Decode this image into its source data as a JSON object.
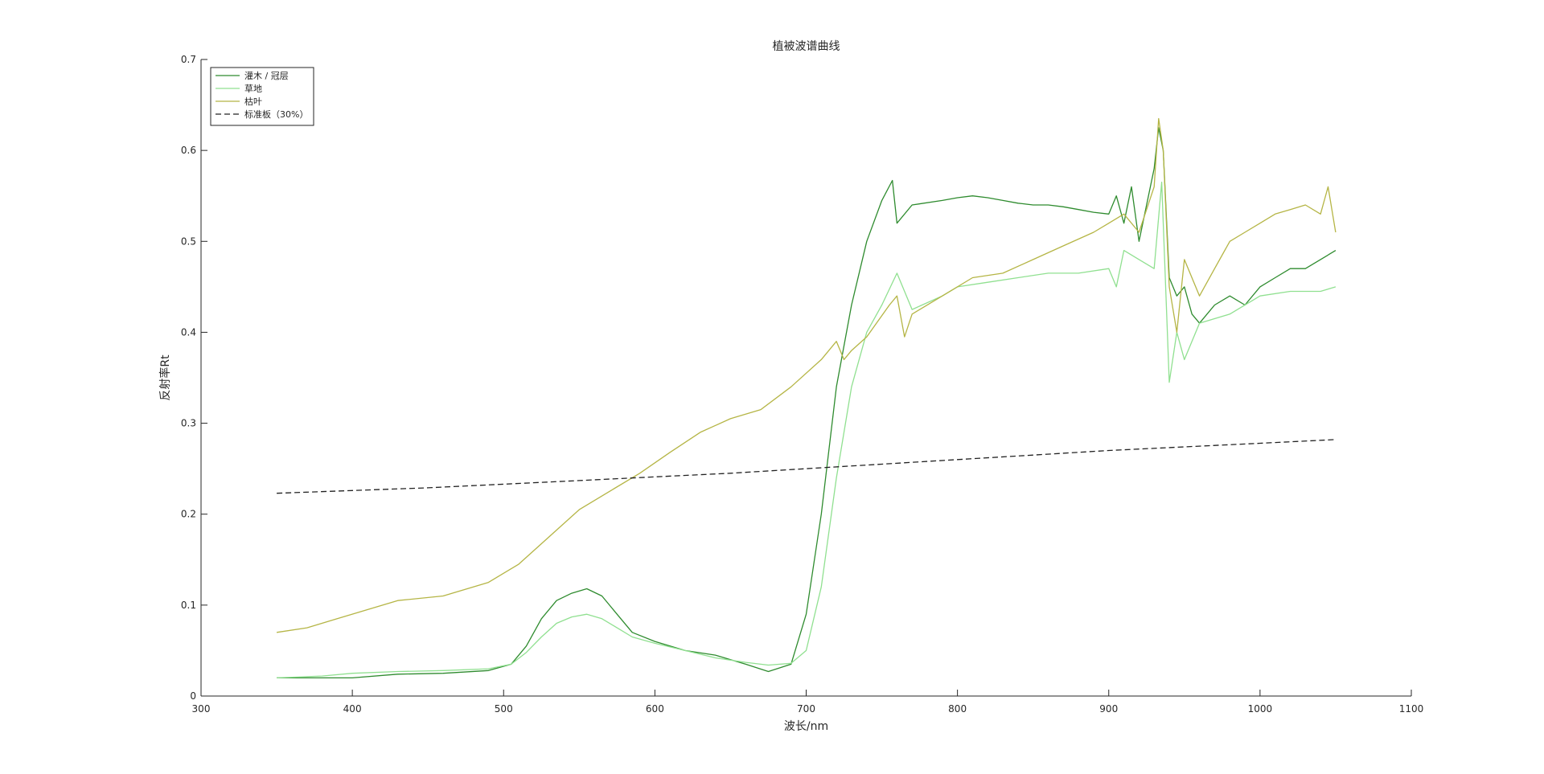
{
  "chart_data": {
    "type": "line",
    "title": "植被波谱曲线",
    "xlabel": "波长/nm",
    "ylabel": "反射率Rt",
    "xlim": [
      300,
      1100
    ],
    "ylim": [
      0,
      0.7
    ],
    "xticks": [
      300,
      400,
      500,
      600,
      700,
      800,
      900,
      1000,
      1100
    ],
    "yticks": [
      0,
      0.1,
      0.2,
      0.3,
      0.4,
      0.5,
      0.6,
      0.7
    ],
    "ytick_labels": [
      "0",
      "0.1",
      "0.2",
      "0.3",
      "0.4",
      "0.5",
      "0.6",
      "0.7"
    ],
    "grid": false,
    "legend_position": "top-left",
    "series": [
      {
        "name": "灌木 / 冠层",
        "color": "#2e8b2e",
        "style": "solid",
        "x": [
          350,
          360,
          380,
          400,
          430,
          460,
          490,
          505,
          515,
          525,
          535,
          545,
          555,
          565,
          575,
          585,
          600,
          620,
          640,
          660,
          675,
          690,
          700,
          710,
          720,
          730,
          740,
          750,
          757,
          760,
          770,
          790,
          800,
          810,
          820,
          830,
          840,
          850,
          860,
          870,
          880,
          890,
          900,
          905,
          910,
          915,
          920,
          925,
          930,
          933,
          936,
          940,
          945,
          950,
          955,
          960,
          970,
          980,
          990,
          1000,
          1010,
          1020,
          1030,
          1040,
          1050
        ],
        "y": [
          0.02,
          0.02,
          0.02,
          0.02,
          0.024,
          0.025,
          0.028,
          0.035,
          0.055,
          0.085,
          0.105,
          0.113,
          0.118,
          0.11,
          0.09,
          0.07,
          0.06,
          0.05,
          0.045,
          0.035,
          0.027,
          0.035,
          0.09,
          0.2,
          0.34,
          0.43,
          0.5,
          0.545,
          0.567,
          0.52,
          0.54,
          0.545,
          0.548,
          0.55,
          0.548,
          0.545,
          0.542,
          0.54,
          0.54,
          0.538,
          0.535,
          0.532,
          0.53,
          0.55,
          0.52,
          0.56,
          0.5,
          0.54,
          0.58,
          0.625,
          0.6,
          0.46,
          0.44,
          0.45,
          0.42,
          0.41,
          0.43,
          0.44,
          0.43,
          0.45,
          0.46,
          0.47,
          0.47,
          0.48,
          0.49
        ]
      },
      {
        "name": "草地",
        "color": "#90e090",
        "style": "solid",
        "x": [
          350,
          380,
          400,
          430,
          460,
          490,
          505,
          515,
          525,
          535,
          545,
          555,
          565,
          575,
          585,
          600,
          620,
          640,
          660,
          675,
          690,
          700,
          710,
          720,
          730,
          740,
          750,
          760,
          770,
          790,
          800,
          820,
          840,
          860,
          880,
          900,
          905,
          910,
          920,
          930,
          935,
          940,
          945,
          950,
          960,
          980,
          1000,
          1020,
          1040,
          1050
        ],
        "y": [
          0.02,
          0.022,
          0.025,
          0.027,
          0.028,
          0.03,
          0.035,
          0.048,
          0.065,
          0.08,
          0.087,
          0.09,
          0.085,
          0.075,
          0.065,
          0.058,
          0.05,
          0.042,
          0.037,
          0.034,
          0.036,
          0.05,
          0.12,
          0.24,
          0.34,
          0.4,
          0.43,
          0.465,
          0.425,
          0.44,
          0.45,
          0.455,
          0.46,
          0.465,
          0.465,
          0.47,
          0.45,
          0.49,
          0.48,
          0.47,
          0.565,
          0.345,
          0.4,
          0.37,
          0.41,
          0.42,
          0.44,
          0.445,
          0.445,
          0.45
        ]
      },
      {
        "name": "枯叶",
        "color": "#b5b545",
        "style": "solid",
        "x": [
          350,
          370,
          390,
          410,
          430,
          460,
          490,
          510,
          530,
          550,
          570,
          590,
          610,
          630,
          650,
          670,
          690,
          710,
          720,
          725,
          730,
          740,
          755,
          760,
          765,
          770,
          790,
          810,
          830,
          850,
          870,
          890,
          900,
          910,
          920,
          930,
          933,
          936,
          940,
          945,
          950,
          960,
          970,
          980,
          990,
          1000,
          1010,
          1020,
          1030,
          1040,
          1045,
          1050
        ],
        "y": [
          0.07,
          0.075,
          0.085,
          0.095,
          0.105,
          0.11,
          0.125,
          0.145,
          0.175,
          0.205,
          0.225,
          0.245,
          0.268,
          0.29,
          0.305,
          0.315,
          0.34,
          0.37,
          0.39,
          0.37,
          0.38,
          0.395,
          0.43,
          0.44,
          0.395,
          0.42,
          0.44,
          0.46,
          0.465,
          0.48,
          0.495,
          0.51,
          0.52,
          0.53,
          0.51,
          0.56,
          0.635,
          0.6,
          0.45,
          0.4,
          0.48,
          0.44,
          0.47,
          0.5,
          0.51,
          0.52,
          0.53,
          0.535,
          0.54,
          0.53,
          0.56,
          0.51
        ]
      },
      {
        "name": "标准板（30%）",
        "color": "#222222",
        "style": "dashed",
        "x": [
          350,
          400,
          450,
          500,
          550,
          600,
          650,
          700,
          750,
          800,
          850,
          900,
          950,
          1000,
          1050
        ],
        "y": [
          0.223,
          0.226,
          0.229,
          0.233,
          0.237,
          0.241,
          0.245,
          0.25,
          0.255,
          0.26,
          0.265,
          0.27,
          0.274,
          0.278,
          0.282
        ]
      }
    ]
  }
}
